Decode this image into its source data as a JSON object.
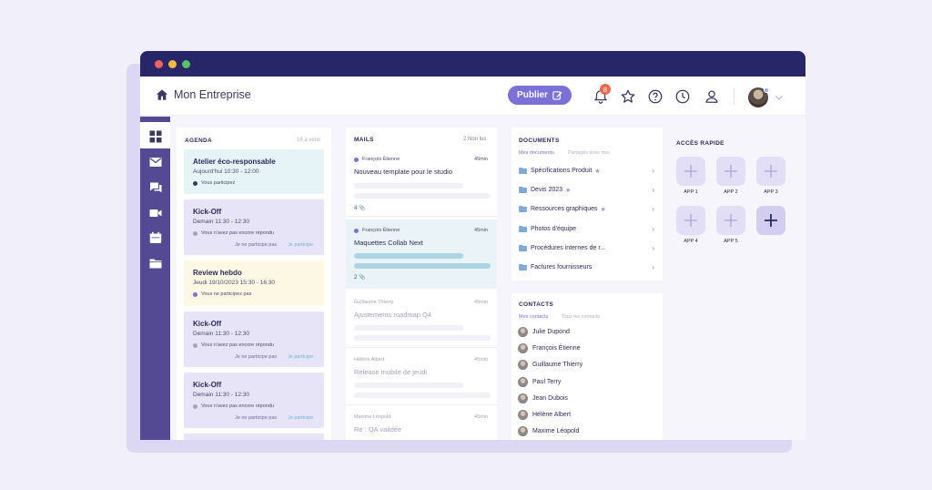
{
  "topbar": {
    "brand": "Mon Entreprise",
    "publish_label": "Publier",
    "notif_count": "8",
    "icons": [
      "bell-icon",
      "star-icon",
      "help-icon",
      "clock-icon",
      "user-icon"
    ]
  },
  "agenda": {
    "title": "AGENDA",
    "meta": "16 à venir",
    "events": [
      {
        "title": "Atelier éco-responsable",
        "date": "Aujourd'hui 10:30 - 12:00",
        "status": "Vous participez"
      },
      {
        "title": "Kick-Off",
        "date": "Demain 11:30 - 12:30",
        "status": "Vous n'avez pas encore répondu",
        "decline": "Je ne participe pas",
        "accept": "Je participe"
      },
      {
        "title": "Review hebdo",
        "date": "Jeudi 19/10/2023 15:30 - 16:30",
        "status": "Vous ne participez pas"
      },
      {
        "title": "Kick-Off",
        "date": "Demain 11:30 - 12:30",
        "status": "Vous n'avez pas encore répondu",
        "decline": "Je ne participe pas",
        "accept": "Je participe"
      },
      {
        "title": "Kick-Off",
        "date": "Demain 11:30 - 12:30",
        "status": "Vous n'avez pas encore répondu",
        "decline": "Je ne participe pas",
        "accept": "Je participe"
      }
    ]
  },
  "mails": {
    "title": "MAILS",
    "meta": "2 Non lus",
    "items": [
      {
        "from": "François Étienne",
        "time": "45min",
        "subject": "Nouveau template pour le studio",
        "attachments": "4"
      },
      {
        "from": "François Étienne",
        "time": "45min",
        "subject": "Maquettes Collab Next",
        "attachments": "2"
      },
      {
        "from": "Guillaume Thierry",
        "time": "45min",
        "subject": "Ajustements roadmap Q4"
      },
      {
        "from": "Hélène Albert",
        "time": "45min",
        "subject": "Release mobile de jeudi"
      },
      {
        "from": "Maxime Léopold",
        "time": "45min",
        "subject": "Re : QA validée"
      }
    ]
  },
  "documents": {
    "title": "DOCUMENTS",
    "tabs": [
      "Mes documents",
      "Partagés avec moi"
    ],
    "items": [
      {
        "name": "Spécifications Produit",
        "starred": true
      },
      {
        "name": "Devis 2023",
        "starred": true
      },
      {
        "name": "Ressources graphiques",
        "starred": true
      },
      {
        "name": "Photos d'équipe",
        "starred": false
      },
      {
        "name": "Procédures internes de r...",
        "starred": false
      },
      {
        "name": "Factures fournisseurs",
        "starred": false
      }
    ]
  },
  "contacts": {
    "title": "CONTACTS",
    "tabs": [
      "Mes contacts",
      "Tous les contacts"
    ],
    "items": [
      "Julie Dupond",
      "François Étienne",
      "Guillaume Thierry",
      "Paul Terry",
      "Jean Dubois",
      "Hélène Albert",
      "Maxime Léopold"
    ]
  },
  "quick_access": {
    "title": "ACCÈS RAPIDE",
    "apps": [
      "APP 1",
      "APP 2",
      "APP 3",
      "APP 4",
      "APP 5"
    ]
  },
  "colors": {
    "titlebar": "#272668",
    "sidenav": "#544993",
    "accent": "#7b6fd8"
  }
}
